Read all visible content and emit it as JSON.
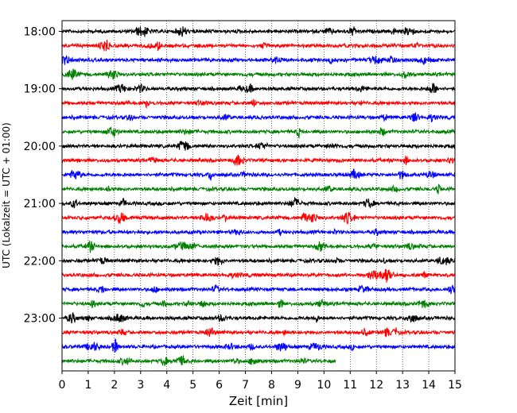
{
  "chart_data": {
    "type": "line",
    "title": "",
    "xlabel": "Zeit  [min]",
    "ylabel": "UTC (Lokalzeit = UTC + 01:00)",
    "xlim": [
      0,
      15
    ],
    "x_ticks": [
      "0",
      "1",
      "2",
      "3",
      "4",
      "5",
      "6",
      "7",
      "8",
      "9",
      "10",
      "11",
      "12",
      "13",
      "14",
      "15"
    ],
    "y_ticks": [
      "18:00",
      "19:00",
      "20:00",
      "21:00",
      "22:00",
      "23:00"
    ],
    "grid": "vertical dotted",
    "trace_colors": [
      "#000000",
      "#ff0000",
      "#0000ff",
      "#008000"
    ],
    "last_trace_end_min": 10.45,
    "traces": [
      {
        "start": "18:00",
        "color": "#000000"
      },
      {
        "start": "18:15",
        "color": "#ff0000"
      },
      {
        "start": "18:30",
        "color": "#0000ff"
      },
      {
        "start": "18:45",
        "color": "#008000"
      },
      {
        "start": "19:00",
        "color": "#000000"
      },
      {
        "start": "19:15",
        "color": "#ff0000"
      },
      {
        "start": "19:30",
        "color": "#0000ff"
      },
      {
        "start": "19:45",
        "color": "#008000"
      },
      {
        "start": "20:00",
        "color": "#000000"
      },
      {
        "start": "20:15",
        "color": "#ff0000"
      },
      {
        "start": "20:30",
        "color": "#0000ff"
      },
      {
        "start": "20:45",
        "color": "#008000"
      },
      {
        "start": "21:00",
        "color": "#000000"
      },
      {
        "start": "21:15",
        "color": "#ff0000"
      },
      {
        "start": "21:30",
        "color": "#0000ff"
      },
      {
        "start": "21:45",
        "color": "#008000"
      },
      {
        "start": "22:00",
        "color": "#000000"
      },
      {
        "start": "22:15",
        "color": "#ff0000"
      },
      {
        "start": "22:30",
        "color": "#0000ff"
      },
      {
        "start": "22:45",
        "color": "#008000"
      },
      {
        "start": "23:00",
        "color": "#000000"
      },
      {
        "start": "23:15",
        "color": "#ff0000"
      },
      {
        "start": "23:30",
        "color": "#0000ff"
      },
      {
        "start": "23:45",
        "color": "#008000"
      }
    ]
  }
}
